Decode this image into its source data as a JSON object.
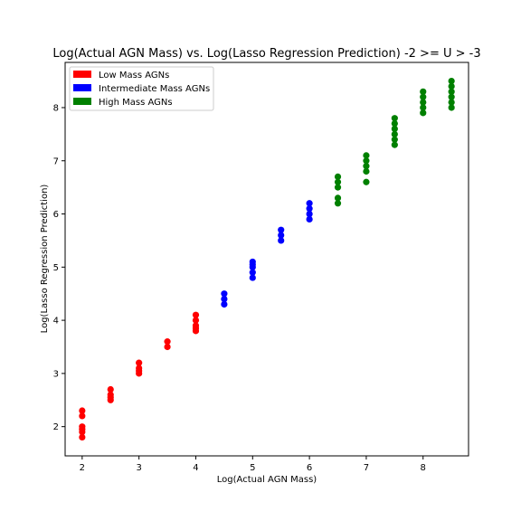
{
  "chart_data": {
    "type": "scatter",
    "title": "Log(Actual AGN Mass) vs. Log(Lasso Regression Prediction) -2 >= U > -3",
    "xlabel": "Log(Actual AGN Mass)",
    "ylabel": "Log(Lasso Regression Prediction)",
    "xlim": [
      1.7,
      8.8
    ],
    "ylim": [
      1.45,
      8.85
    ],
    "xticks": [
      2,
      3,
      4,
      5,
      6,
      7,
      8
    ],
    "yticks": [
      2,
      3,
      4,
      5,
      6,
      7,
      8
    ],
    "grid": false,
    "legend_position": "top-left",
    "series": [
      {
        "name": "Low Mass AGNs",
        "color": "#ff0000",
        "points": [
          [
            2,
            1.8
          ],
          [
            2,
            1.9
          ],
          [
            2,
            1.95
          ],
          [
            2,
            2.0
          ],
          [
            2,
            2.2
          ],
          [
            2,
            2.3
          ],
          [
            2.5,
            2.5
          ],
          [
            2.5,
            2.55
          ],
          [
            2.5,
            2.6
          ],
          [
            2.5,
            2.7
          ],
          [
            3,
            3.0
          ],
          [
            3,
            3.05
          ],
          [
            3,
            3.1
          ],
          [
            3,
            3.2
          ],
          [
            3.5,
            3.5
          ],
          [
            3.5,
            3.6
          ],
          [
            4,
            3.8
          ],
          [
            4,
            3.85
          ],
          [
            4,
            3.9
          ],
          [
            4,
            4.0
          ],
          [
            4,
            4.1
          ]
        ]
      },
      {
        "name": "Intermediate Mass AGNs",
        "color": "#0000ff",
        "points": [
          [
            4.5,
            4.3
          ],
          [
            4.5,
            4.4
          ],
          [
            4.5,
            4.5
          ],
          [
            5,
            4.8
          ],
          [
            5,
            4.9
          ],
          [
            5,
            5.0
          ],
          [
            5,
            5.05
          ],
          [
            5,
            5.1
          ],
          [
            5.5,
            5.5
          ],
          [
            5.5,
            5.6
          ],
          [
            5.5,
            5.7
          ],
          [
            6,
            5.9
          ],
          [
            6,
            6.0
          ],
          [
            6,
            6.1
          ],
          [
            6,
            6.2
          ]
        ]
      },
      {
        "name": "High Mass AGNs",
        "color": "#008000",
        "points": [
          [
            6.5,
            6.2
          ],
          [
            6.5,
            6.3
          ],
          [
            6.5,
            6.5
          ],
          [
            6.5,
            6.6
          ],
          [
            6.5,
            6.7
          ],
          [
            7,
            6.6
          ],
          [
            7,
            6.8
          ],
          [
            7,
            6.9
          ],
          [
            7,
            7.0
          ],
          [
            7,
            7.1
          ],
          [
            7.5,
            7.3
          ],
          [
            7.5,
            7.4
          ],
          [
            7.5,
            7.5
          ],
          [
            7.5,
            7.6
          ],
          [
            7.5,
            7.7
          ],
          [
            7.5,
            7.8
          ],
          [
            8,
            7.9
          ],
          [
            8,
            8.0
          ],
          [
            8,
            8.1
          ],
          [
            8,
            8.2
          ],
          [
            8,
            8.3
          ],
          [
            8.5,
            8.0
          ],
          [
            8.5,
            8.1
          ],
          [
            8.5,
            8.2
          ],
          [
            8.5,
            8.3
          ],
          [
            8.5,
            8.4
          ],
          [
            8.5,
            8.5
          ]
        ]
      }
    ]
  }
}
